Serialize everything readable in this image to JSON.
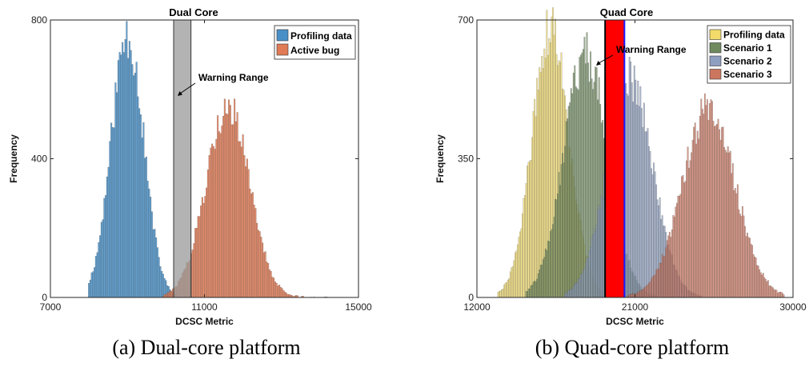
{
  "chart_data": [
    {
      "type": "bar",
      "title": "Dual Core",
      "caption": "(a) Dual-core platform",
      "xlabel": "DCSC Metric",
      "ylabel": "Frequency",
      "xlim": [
        7000,
        15000
      ],
      "ylim": [
        0,
        800
      ],
      "xticks": [
        7000,
        11000,
        15000
      ],
      "yticks": [
        0,
        400,
        800
      ],
      "legend_position": "top-right",
      "series": [
        {
          "name": "Profiling data",
          "color": "#4a90c8",
          "mean": 9000,
          "sd": 420,
          "peak": 760,
          "range": [
            8000,
            10300
          ]
        },
        {
          "name": "Active bug",
          "color": "#e07b55",
          "mean": 11600,
          "sd": 560,
          "peak": 555,
          "range": [
            9900,
            14300
          ]
        }
      ],
      "warning_range": {
        "label": "Warning Range",
        "x": [
          10200,
          10650
        ],
        "color": "#999999"
      }
    },
    {
      "type": "bar",
      "title": "Quad Core",
      "caption": "(b) Quad-core platform",
      "xlabel": "DCSC Metric",
      "ylabel": "Frequency",
      "xlim": [
        12000,
        30000
      ],
      "ylim": [
        0,
        700
      ],
      "xticks": [
        12000,
        21000,
        30000
      ],
      "yticks": [
        0,
        350,
        700
      ],
      "legend_position": "top-right",
      "series": [
        {
          "name": "Profiling data",
          "color": "#f2db6a",
          "mean": 16200,
          "sd": 1050,
          "peak": 675,
          "range": [
            13200,
            19800
          ]
        },
        {
          "name": "Scenario 1",
          "color": "#6f8a5f",
          "mean": 18200,
          "sd": 1250,
          "peak": 615,
          "range": [
            14800,
            22200
          ]
        },
        {
          "name": "Scenario 2",
          "color": "#8f9fc0",
          "mean": 20700,
          "sd": 1300,
          "peak": 555,
          "range": [
            17000,
            24800
          ]
        },
        {
          "name": "Scenario 3",
          "color": "#cc7660",
          "mean": 25200,
          "sd": 1500,
          "peak": 475,
          "range": [
            20500,
            29500
          ]
        }
      ],
      "warning_range": {
        "label": "Warning Range",
        "x": [
          19300,
          20400
        ],
        "color": "#ff0000"
      }
    }
  ]
}
